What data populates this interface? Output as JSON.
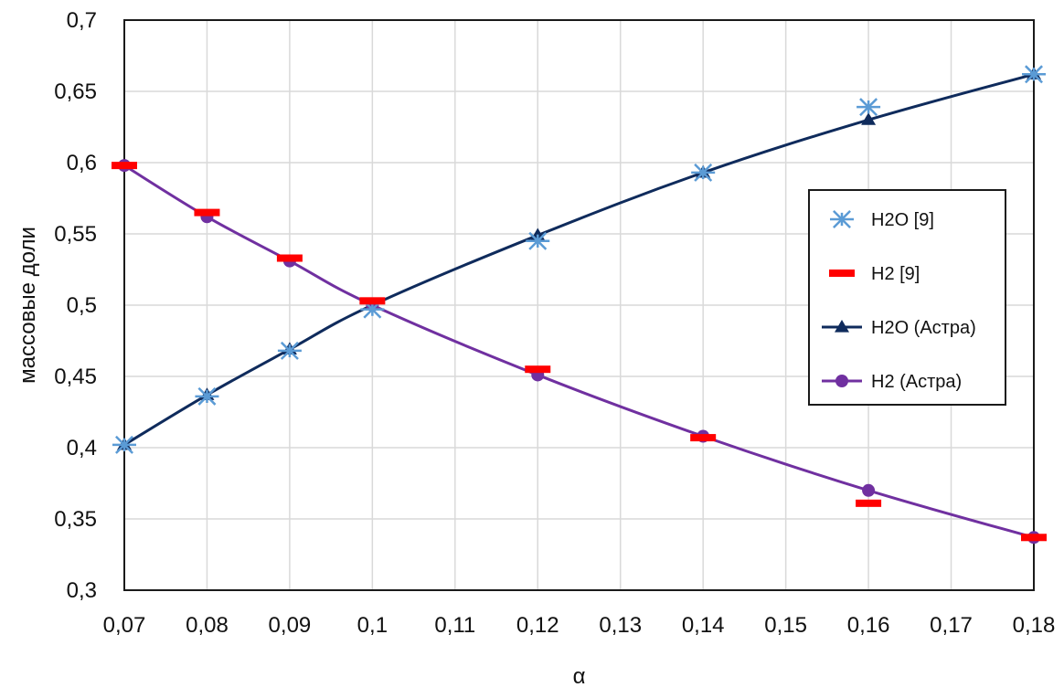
{
  "chart_data": {
    "type": "line",
    "xlabel": "α",
    "ylabel": "массовые доли",
    "xlim": [
      0.07,
      0.18
    ],
    "ylim": [
      0.3,
      0.7
    ],
    "x_ticks": [
      "0,07",
      "0,08",
      "0,09",
      "0,1",
      "0,11",
      "0,12",
      "0,13",
      "0,14",
      "0,15",
      "0,16",
      "0,17",
      "0,18"
    ],
    "y_ticks": [
      "0,3",
      "0,35",
      "0,4",
      "0,45",
      "0,5",
      "0,55",
      "0,6",
      "0,65",
      "0,7"
    ],
    "grid": true,
    "legend_position": "right",
    "series": [
      {
        "name": "H2O [9]",
        "kind": "marker",
        "marker": "asterisk",
        "color": "#5b9bd5",
        "x": [
          0.07,
          0.08,
          0.09,
          0.1,
          0.12,
          0.14,
          0.16,
          0.18
        ],
        "y": [
          0.402,
          0.436,
          0.468,
          0.497,
          0.545,
          0.593,
          0.639,
          0.662
        ]
      },
      {
        "name": "H2 [9]",
        "kind": "marker",
        "marker": "dash",
        "color": "#ff0000",
        "x": [
          0.07,
          0.08,
          0.09,
          0.1,
          0.12,
          0.14,
          0.16,
          0.18
        ],
        "y": [
          0.598,
          0.565,
          0.533,
          0.503,
          0.455,
          0.407,
          0.361,
          0.337
        ]
      },
      {
        "name": "H2O (Астра)",
        "kind": "line",
        "marker": "triangle",
        "color": "#0f2b5c",
        "x": [
          0.07,
          0.08,
          0.09,
          0.1,
          0.12,
          0.14,
          0.16,
          0.18
        ],
        "y": [
          0.402,
          0.437,
          0.469,
          0.5,
          0.549,
          0.593,
          0.63,
          0.662
        ]
      },
      {
        "name": "H2 (Астра)",
        "kind": "line",
        "marker": "circle",
        "color": "#7030a0",
        "x": [
          0.07,
          0.08,
          0.09,
          0.1,
          0.12,
          0.14,
          0.16,
          0.18
        ],
        "y": [
          0.598,
          0.562,
          0.531,
          0.5,
          0.451,
          0.408,
          0.37,
          0.337
        ]
      }
    ]
  }
}
